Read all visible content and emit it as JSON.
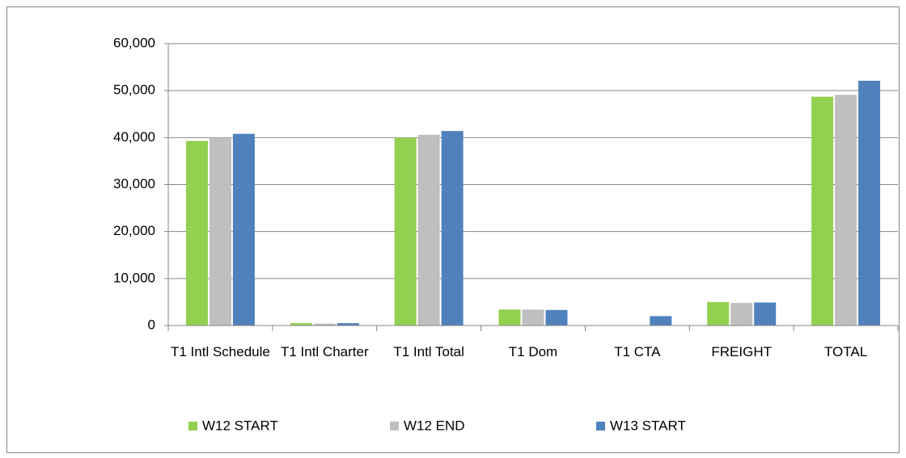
{
  "chart_data": {
    "type": "bar",
    "categories": [
      "T1 Intl Schedule",
      "T1 Intl Charter",
      "T1 Intl Total",
      "T1 Dom",
      "T1 CTA",
      "FREIGHT",
      "TOTAL"
    ],
    "series": [
      {
        "name": "W12 START",
        "color": "#92d050",
        "values": [
          39300,
          500,
          40000,
          3400,
          0,
          5000,
          48700
        ]
      },
      {
        "name": "W12 END",
        "color": "#bfbfbf",
        "values": [
          40000,
          400,
          40600,
          3400,
          0,
          4800,
          49100
        ]
      },
      {
        "name": "W13 START",
        "color": "#4f81bd",
        "values": [
          40800,
          500,
          41400,
          3300,
          2000,
          4900,
          52100
        ]
      }
    ],
    "ylim": [
      0,
      60000
    ],
    "yticks": [
      0,
      {
        "value": 10000,
        "label": "10,000"
      },
      {
        "value": 20000,
        "label": "20,000"
      },
      {
        "value": 30000,
        "label": "30,000"
      },
      {
        "value": 40000,
        "label": "40,000"
      },
      {
        "value": 50000,
        "label": "50,000"
      },
      {
        "value": 60000,
        "label": "60,000"
      }
    ],
    "grid": true,
    "legend": "bottom"
  }
}
